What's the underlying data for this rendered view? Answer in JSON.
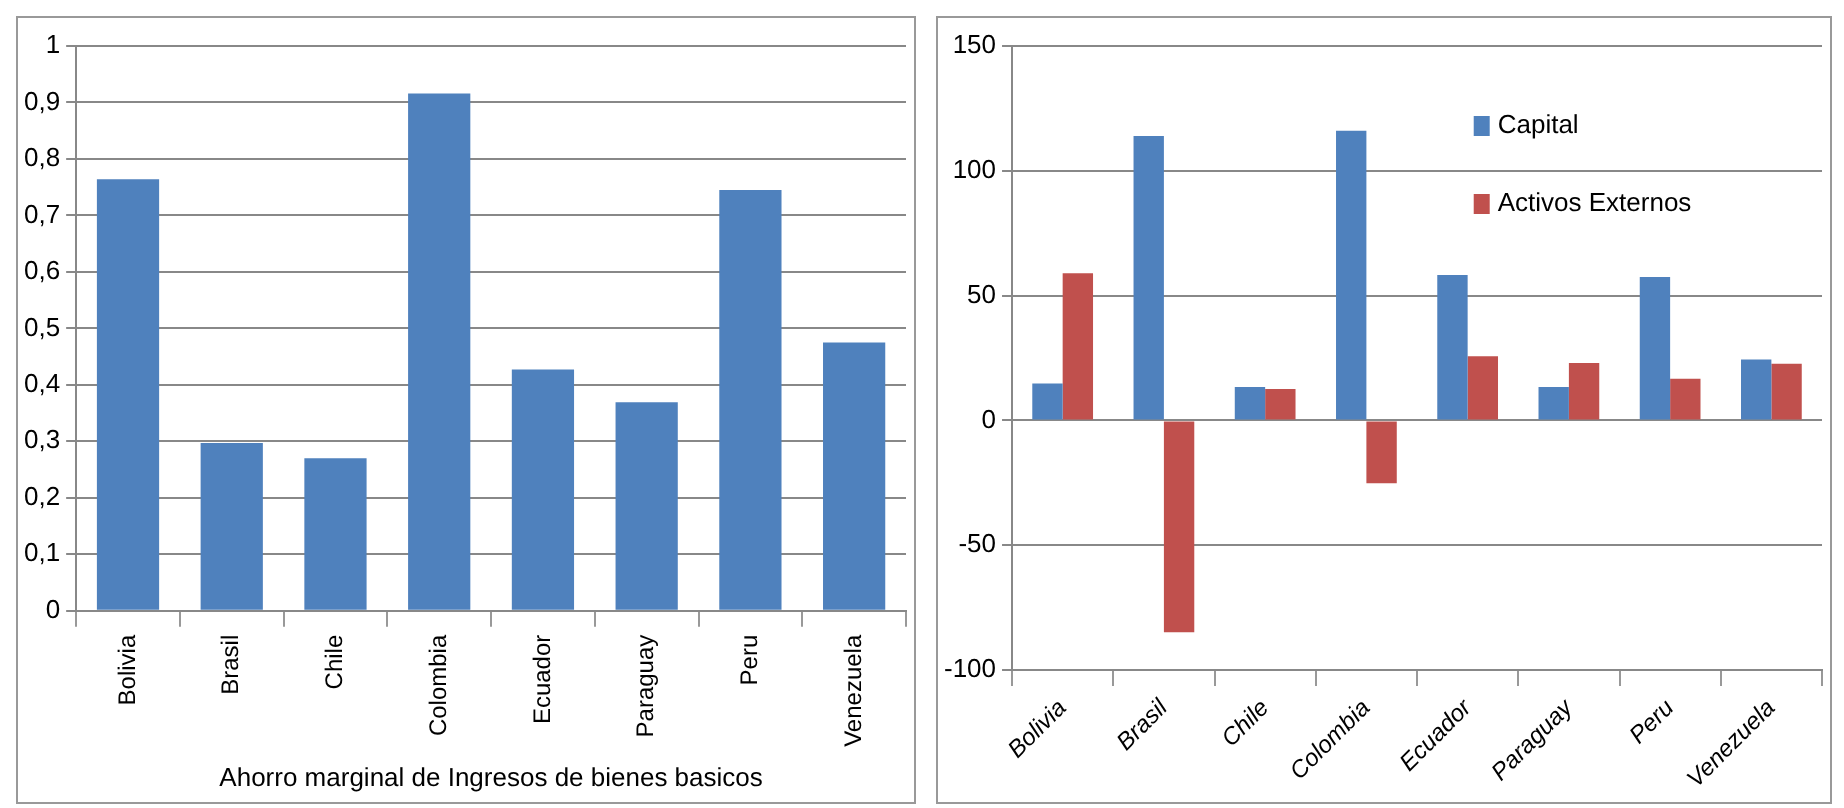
{
  "chart_data": [
    {
      "type": "bar",
      "xlabel": "Ahorro marginal de Ingresos de bienes basicos",
      "categories": [
        "Bolivia",
        "Brasil",
        "Chile",
        "Colombia",
        "Ecuador",
        "Paraguay",
        "Peru",
        "Venezuela"
      ],
      "values": [
        0.764,
        0.297,
        0.27,
        0.916,
        0.427,
        0.369,
        0.745,
        0.475
      ],
      "color": "#4f81bd",
      "ylim": [
        0,
        1
      ],
      "yticks": [
        0,
        {
          "value": 0.1,
          "label": "0,1"
        },
        {
          "value": 0.2,
          "label": "0,2"
        },
        {
          "value": 0.3,
          "label": "0,3"
        },
        {
          "value": 0.4,
          "label": "0,4"
        },
        {
          "value": 0.5,
          "label": "0,5"
        },
        {
          "value": 0.6,
          "label": "0,6"
        },
        {
          "value": 0.7,
          "label": "0,7"
        },
        {
          "value": 0.8,
          "label": "0,8"
        },
        {
          "value": 0.9,
          "label": "0,9"
        },
        1
      ],
      "grid": "y"
    },
    {
      "type": "bar",
      "categories": [
        "Bolivia",
        "Brasil",
        "Chile",
        "Colombia",
        "Ecuador",
        "Paraguay",
        "Peru",
        "Venezuela"
      ],
      "series": [
        {
          "name": "Capital",
          "color": "#4f81bd",
          "values": [
            14.8,
            113.9,
            13.4,
            116,
            58.3,
            13.4,
            57.5,
            24.4
          ]
        },
        {
          "name": "Activos Externos",
          "color": "#c0504d",
          "values": [
            59,
            -84.9,
            12.6,
            -25.2,
            25.7,
            23,
            16.7,
            22.7
          ]
        }
      ],
      "ylim": [
        -100,
        150
      ],
      "yticks": [
        -100,
        -50,
        0,
        50,
        100,
        150
      ],
      "grid": "y",
      "legend": "top right"
    }
  ]
}
